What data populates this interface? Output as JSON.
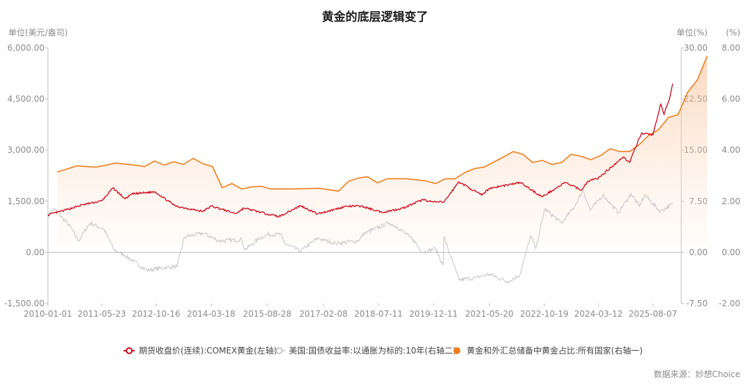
{
  "chart_data": {
    "type": "line",
    "title": "黄金的底层逻辑变了",
    "source": "数据来源：妙想Choice",
    "axes": {
      "left": {
        "unit": "单位(美元/盎司)",
        "ticks": [
          "6,000.00",
          "4,500.00",
          "3,000.00",
          "1,500.00",
          "0.00",
          "-1,500.00"
        ],
        "range": [
          -1500,
          6000
        ]
      },
      "right1": {
        "unit": "单位(%)",
        "ticks": [
          "30.00",
          "22.50",
          "15.00",
          "7.50",
          "0.00",
          "-7.50"
        ],
        "range": [
          -7.5,
          30
        ]
      },
      "right2": {
        "unit": "(%)",
        "ticks": [
          "8.00",
          "6.00",
          "4.00",
          "2.00",
          "0.00",
          "-2.00"
        ],
        "range": [
          -2,
          8
        ]
      }
    },
    "x_ticks": [
      "2010-01-01",
      "2011-05-23",
      "2012-10-16",
      "2014-03-18",
      "2015-08-28",
      "2017-02-08",
      "2018-07-11",
      "2019-12-11",
      "2021-05-20",
      "2022-10-19",
      "2024-03-12",
      "2025-08-07"
    ],
    "x_range": [
      "2010-01-01",
      "2026-05-01"
    ],
    "series": [
      {
        "name": "期货收盘价(连续):COMEX黄金(左轴)",
        "axis": "left",
        "color": "#d0021b",
        "style": "line",
        "points": [
          [
            "2010-01-01",
            1100
          ],
          [
            "2010-06-01",
            1230
          ],
          [
            "2010-12-01",
            1400
          ],
          [
            "2011-05-23",
            1510
          ],
          [
            "2011-09-06",
            1890
          ],
          [
            "2011-12-29",
            1570
          ],
          [
            "2012-03-01",
            1710
          ],
          [
            "2012-10-05",
            1780
          ],
          [
            "2013-04-15",
            1360
          ],
          [
            "2013-12-31",
            1200
          ],
          [
            "2014-03-18",
            1360
          ],
          [
            "2014-11-05",
            1140
          ],
          [
            "2015-01-22",
            1300
          ],
          [
            "2015-08-28",
            1130
          ],
          [
            "2015-12-17",
            1050
          ],
          [
            "2016-07-06",
            1370
          ],
          [
            "2016-12-15",
            1130
          ],
          [
            "2017-09-08",
            1350
          ],
          [
            "2018-01-25",
            1360
          ],
          [
            "2018-08-16",
            1175
          ],
          [
            "2019-03-01",
            1300
          ],
          [
            "2019-09-04",
            1550
          ],
          [
            "2019-12-11",
            1475
          ],
          [
            "2020-03-19",
            1480
          ],
          [
            "2020-08-06",
            2070
          ],
          [
            "2021-03-08",
            1680
          ],
          [
            "2021-05-20",
            1880
          ],
          [
            "2022-03-08",
            2050
          ],
          [
            "2022-09-28",
            1630
          ],
          [
            "2023-05-04",
            2050
          ],
          [
            "2023-10-05",
            1830
          ],
          [
            "2023-12-04",
            2090
          ],
          [
            "2024-03-12",
            2180
          ],
          [
            "2024-10-30",
            2800
          ],
          [
            "2024-12-31",
            2640
          ],
          [
            "2025-04-21",
            3500
          ],
          [
            "2025-08-07",
            3450
          ],
          [
            "2025-10-20",
            4350
          ],
          [
            "2025-11-20",
            4050
          ],
          [
            "2026-01-10",
            4500
          ],
          [
            "2026-02-10",
            4950
          ]
        ]
      },
      {
        "name": "美国:国债收益率:以通胀为标的:10年(右轴二)",
        "axis": "right2",
        "color": "#c8c8c8",
        "style": "line",
        "points": [
          [
            "2010-01-01",
            1.45
          ],
          [
            "2010-03-01",
            1.7
          ],
          [
            "2010-08-01",
            1.0
          ],
          [
            "2010-10-15",
            0.45
          ],
          [
            "2011-02-01",
            1.15
          ],
          [
            "2011-06-15",
            0.9
          ],
          [
            "2011-09-15",
            0.1
          ],
          [
            "2011-12-20",
            -0.1
          ],
          [
            "2012-07-20",
            -0.7
          ],
          [
            "2012-12-31",
            -0.6
          ],
          [
            "2013-05-01",
            -0.55
          ],
          [
            "2013-07-10",
            0.6
          ],
          [
            "2013-12-31",
            0.75
          ],
          [
            "2014-06-01",
            0.45
          ],
          [
            "2014-12-31",
            0.5
          ],
          [
            "2015-01-30",
            0.1
          ],
          [
            "2015-06-15",
            0.55
          ],
          [
            "2015-09-01",
            0.7
          ],
          [
            "2015-12-31",
            0.7
          ],
          [
            "2016-02-10",
            0.35
          ],
          [
            "2016-07-05",
            0.05
          ],
          [
            "2016-12-15",
            0.55
          ],
          [
            "2017-06-01",
            0.35
          ],
          [
            "2017-12-31",
            0.45
          ],
          [
            "2018-03-01",
            0.75
          ],
          [
            "2018-10-20",
            1.15
          ],
          [
            "2018-12-31",
            1.0
          ],
          [
            "2019-06-01",
            0.5
          ],
          [
            "2019-09-01",
            0.0
          ],
          [
            "2019-12-31",
            0.15
          ],
          [
            "2020-03-09",
            -0.5
          ],
          [
            "2020-03-19",
            0.6
          ],
          [
            "2020-08-06",
            -1.08
          ],
          [
            "2021-01-01",
            -1.0
          ],
          [
            "2021-05-20",
            -0.85
          ],
          [
            "2021-11-08",
            -1.15
          ],
          [
            "2022-03-01",
            -0.9
          ],
          [
            "2022-06-14",
            0.65
          ],
          [
            "2022-08-01",
            0.15
          ],
          [
            "2022-10-24",
            1.7
          ],
          [
            "2023-04-01",
            1.15
          ],
          [
            "2023-08-01",
            1.8
          ],
          [
            "2023-10-19",
            2.45
          ],
          [
            "2023-12-27",
            1.65
          ],
          [
            "2024-04-25",
            2.25
          ],
          [
            "2024-09-16",
            1.55
          ],
          [
            "2025-01-14",
            2.3
          ],
          [
            "2025-04-02",
            1.8
          ],
          [
            "2025-05-21",
            2.25
          ],
          [
            "2025-10-15",
            1.6
          ],
          [
            "2026-02-10",
            1.9
          ]
        ]
      },
      {
        "name": "黄金和外汇总储备中黄金占比:所有国家(右轴一)",
        "axis": "right1",
        "color": "#ef7d1c",
        "style": "area",
        "points": [
          [
            "2010-03-31",
            11.8
          ],
          [
            "2010-09-30",
            12.7
          ],
          [
            "2011-03-31",
            12.5
          ],
          [
            "2011-09-30",
            13.1
          ],
          [
            "2012-03-31",
            12.8
          ],
          [
            "2012-06-30",
            12.6
          ],
          [
            "2012-09-30",
            13.4
          ],
          [
            "2012-12-31",
            12.8
          ],
          [
            "2013-03-31",
            13.3
          ],
          [
            "2013-06-30",
            12.9
          ],
          [
            "2013-09-30",
            13.8
          ],
          [
            "2013-12-31",
            13.0
          ],
          [
            "2014-03-31",
            12.6
          ],
          [
            "2014-06-30",
            9.5
          ],
          [
            "2014-09-30",
            10.1
          ],
          [
            "2014-12-31",
            9.3
          ],
          [
            "2015-03-31",
            9.6
          ],
          [
            "2015-06-30",
            9.7
          ],
          [
            "2015-09-30",
            9.3
          ],
          [
            "2016-03-31",
            9.3
          ],
          [
            "2016-12-31",
            9.4
          ],
          [
            "2017-06-30",
            9.0
          ],
          [
            "2017-09-30",
            10.4
          ],
          [
            "2017-12-31",
            10.9
          ],
          [
            "2018-03-31",
            11.1
          ],
          [
            "2018-06-30",
            10.2
          ],
          [
            "2018-09-30",
            10.8
          ],
          [
            "2019-03-31",
            10.8
          ],
          [
            "2019-09-30",
            10.5
          ],
          [
            "2019-12-31",
            10.1
          ],
          [
            "2020-03-31",
            10.8
          ],
          [
            "2020-06-30",
            10.8
          ],
          [
            "2020-09-30",
            11.7
          ],
          [
            "2020-12-31",
            12.3
          ],
          [
            "2021-03-31",
            12.5
          ],
          [
            "2021-09-30",
            14.0
          ],
          [
            "2021-12-31",
            14.8
          ],
          [
            "2022-03-31",
            14.4
          ],
          [
            "2022-06-30",
            13.2
          ],
          [
            "2022-09-30",
            13.5
          ],
          [
            "2022-12-31",
            12.9
          ],
          [
            "2023-03-31",
            13.2
          ],
          [
            "2023-06-30",
            14.4
          ],
          [
            "2023-09-30",
            14.1
          ],
          [
            "2023-12-31",
            13.6
          ],
          [
            "2024-03-31",
            14.2
          ],
          [
            "2024-06-30",
            15.2
          ],
          [
            "2024-09-30",
            14.8
          ],
          [
            "2024-12-31",
            14.8
          ],
          [
            "2025-03-31",
            15.8
          ],
          [
            "2025-06-30",
            17.2
          ],
          [
            "2025-09-30",
            18.0
          ],
          [
            "2025-12-31",
            19.8
          ],
          [
            "2026-03-31",
            20.2
          ],
          [
            "2026-06-30",
            23.5
          ],
          [
            "2026-09-30",
            25.3
          ],
          [
            "2026-12-31",
            28.8
          ]
        ]
      }
    ],
    "legend_position": "bottom",
    "grid": false
  }
}
